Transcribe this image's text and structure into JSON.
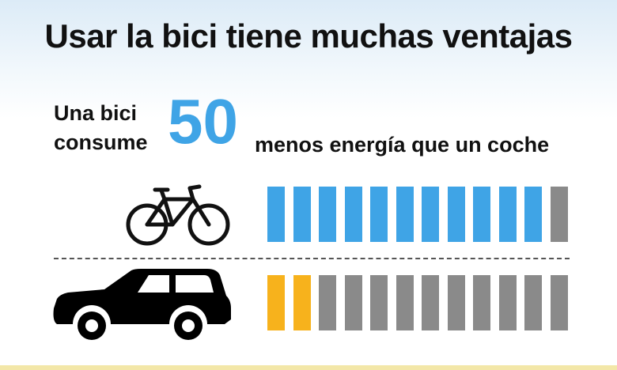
{
  "title": "Usar la bici tiene muchas ventajas",
  "lead": {
    "line1": "Una bici",
    "line2": "consume",
    "number": "50",
    "line3": "menos energía que un coche"
  },
  "icons": {
    "bike": "bicycle-icon",
    "car": "car-icon"
  },
  "colors": {
    "accent_blue": "#3fa4e6",
    "gray": "#8a8a8a",
    "yellow": "#f7b21c",
    "text": "#111111"
  },
  "rows": [
    {
      "name": "bike-row",
      "highlighted": 11,
      "total": 12,
      "highlight_color": "#3fa4e6"
    },
    {
      "name": "car-row",
      "highlighted": 2,
      "total": 12,
      "highlight_color": "#f7b21c"
    }
  ]
}
